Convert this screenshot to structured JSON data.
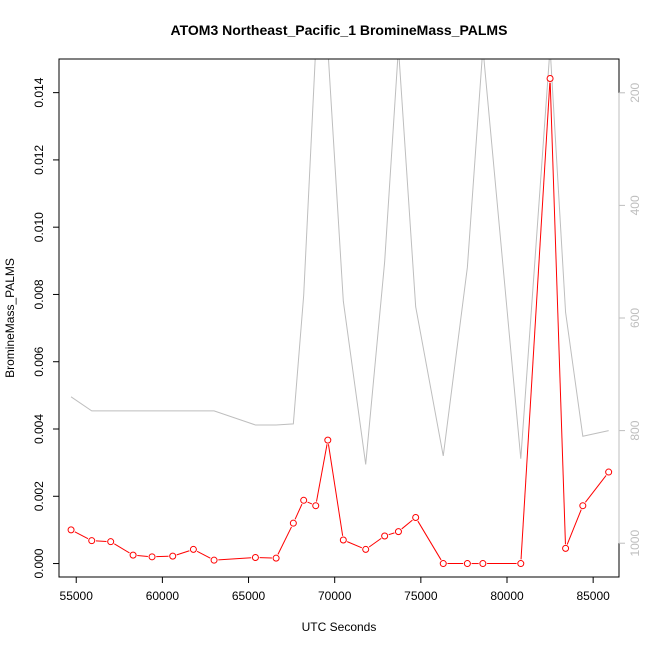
{
  "chart_data": {
    "type": "line",
    "title": "ATOM3 Northeast_Pacific_1 BromineMass_PALMS",
    "xlabel": "UTC Seconds",
    "ylabel": "BromineMass_PALMS",
    "xlim": [
      54000,
      86500
    ],
    "ylim": [
      -0.0004,
      0.015
    ],
    "y2lim": [
      1060,
      140
    ],
    "x_ticks": [
      55000,
      60000,
      65000,
      70000,
      75000,
      80000,
      85000
    ],
    "y_ticks": [
      0.0,
      0.002,
      0.004,
      0.006,
      0.008,
      0.01,
      0.012,
      0.014
    ],
    "y_tick_labels": [
      "0.000",
      "0.002",
      "0.004",
      "0.006",
      "0.008",
      "0.010",
      "0.012",
      "0.014"
    ],
    "y2_ticks": [
      200,
      400,
      600,
      800,
      1000
    ],
    "colors": {
      "primary": "#ff0000",
      "secondary": "#bebebe"
    },
    "series": [
      {
        "role": "primary",
        "axis": "left",
        "style": "line+open-circle",
        "x": [
          54700,
          55900,
          57000,
          58300,
          59400,
          60600,
          61800,
          63000,
          65400,
          66600,
          67600,
          68200,
          68900,
          69600,
          70500,
          71800,
          72900,
          73700,
          74700,
          76300,
          77700,
          78600,
          80800,
          82500,
          83400,
          84400,
          85900
        ],
        "y": [
          0.001,
          0.00068,
          0.00065,
          0.00025,
          0.0002,
          0.00022,
          0.00042,
          0.0001,
          0.00018,
          0.00016,
          0.0012,
          0.00188,
          0.00172,
          0.00367,
          0.0007,
          0.00042,
          0.00082,
          0.00095,
          0.00137,
          0.0,
          0.0,
          0.0,
          0.0,
          0.01442,
          0.00045,
          0.00172,
          0.00272
        ]
      },
      {
        "role": "secondary",
        "axis": "right",
        "style": "line",
        "x": [
          54700,
          55900,
          63000,
          65400,
          66600,
          67600,
          68200,
          68900,
          69600,
          70500,
          71800,
          72900,
          73700,
          74700,
          76300,
          77700,
          78600,
          80800,
          82500,
          83400,
          84400,
          85900
        ],
        "y": [
          740,
          765,
          765,
          790,
          790,
          788,
          560,
          120,
          120,
          570,
          860,
          500,
          120,
          580,
          845,
          510,
          120,
          850,
          120,
          590,
          810,
          800
        ]
      }
    ]
  }
}
